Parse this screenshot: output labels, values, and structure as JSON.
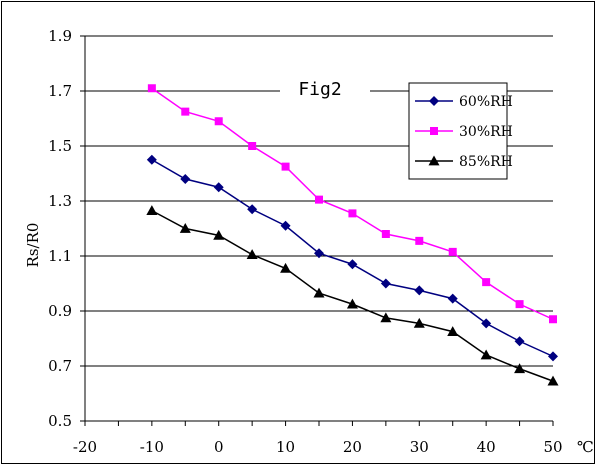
{
  "chart_data": {
    "type": "line",
    "title": "Fig2",
    "xlabel": "℃",
    "ylabel": "Rs/R0",
    "xlim": [
      -20,
      50
    ],
    "ylim": [
      0.5,
      1.9
    ],
    "x_ticks": [
      "-20",
      "-10",
      "0",
      "10",
      "20",
      "30",
      "40",
      "50"
    ],
    "y_ticks": [
      "0.5",
      "0.7",
      "0.9",
      "1.1",
      "1.3",
      "1.5",
      "1.7",
      "1.9"
    ],
    "grid": "horizontal",
    "legend_position": "top-right",
    "x": [
      -10,
      -5,
      0,
      5,
      10,
      15,
      20,
      25,
      30,
      35,
      40,
      45,
      50
    ],
    "series": [
      {
        "name": "60%RH",
        "color": "#000080",
        "marker": "diamond",
        "values": [
          1.45,
          1.38,
          1.35,
          1.27,
          1.21,
          1.11,
          1.07,
          1.0,
          0.975,
          0.945,
          0.855,
          0.79,
          0.735
        ]
      },
      {
        "name": "30%RH",
        "color": "#ff00ff",
        "marker": "square",
        "values": [
          1.71,
          1.625,
          1.59,
          1.5,
          1.425,
          1.305,
          1.255,
          1.18,
          1.155,
          1.115,
          1.005,
          0.925,
          0.87
        ]
      },
      {
        "name": "85%RH",
        "color": "#000000",
        "marker": "triangle",
        "values": [
          1.265,
          1.2,
          1.175,
          1.105,
          1.055,
          0.965,
          0.925,
          0.875,
          0.855,
          0.825,
          0.74,
          0.69,
          0.645
        ]
      }
    ]
  }
}
